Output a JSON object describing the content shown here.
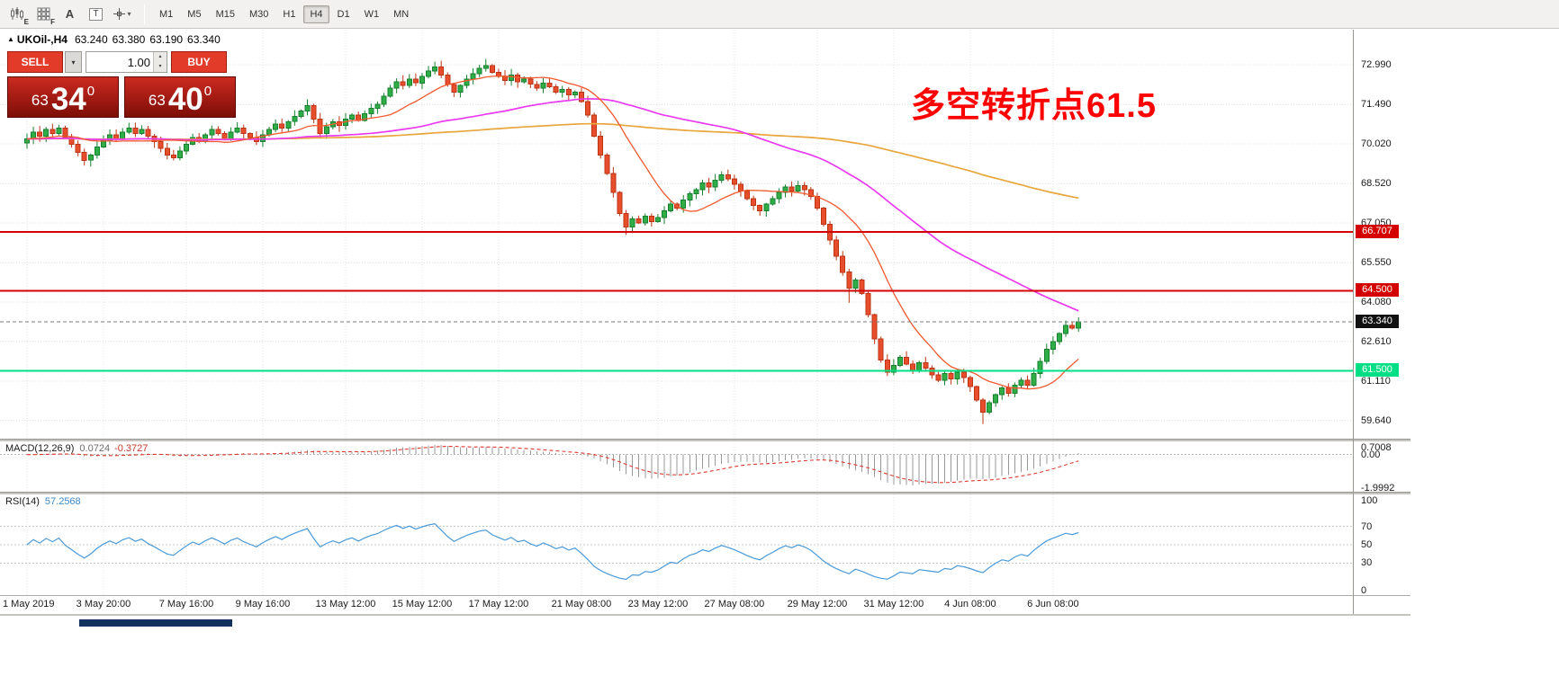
{
  "colors": {
    "toolbar_bg": "#f2f1ef",
    "chart_bg": "#ffffff",
    "grid_v": "#e5e5e5",
    "grid_h": "#e0e0e0",
    "bull_fill": "#2fae48",
    "bull_stroke": "#17802e",
    "bear_fill": "#e84e2b",
    "bear_stroke": "#bb3414",
    "ma_fast": "#f2592e",
    "ma_mid": "#ea3af0",
    "ma_slow": "#e8a63c",
    "price_line": "#7a7a7a",
    "macd_hist": "#999999",
    "macd_signal": "#dd3b30",
    "rsi_line": "#4a9ad9",
    "annotation_red": "#ff0000",
    "trade_red": "#e23b2a",
    "level_red": "#d40000",
    "level_green": "#00df85"
  },
  "toolbar": {
    "icons": [
      {
        "name": "candlestick-chart-icon",
        "glyph": "E"
      },
      {
        "name": "indicator-grid-icon",
        "glyph": "F"
      },
      {
        "name": "font-tool-icon",
        "glyph": "A"
      },
      {
        "name": "text-tool-icon",
        "glyph": "T"
      },
      {
        "name": "crosshair-tool-icon",
        "glyph": ""
      }
    ],
    "dropdown_caret": "▾",
    "timeframes": [
      "M1",
      "M5",
      "M15",
      "M30",
      "H1",
      "H4",
      "D1",
      "W1",
      "MN"
    ],
    "active_timeframe": "H4"
  },
  "symbol_header": {
    "arrow": "▲",
    "symbol": "UKOil-,H4",
    "open": "63.240",
    "high": "63.380",
    "low": "63.190",
    "close": "63.340"
  },
  "trade_panel": {
    "sell_label": "SELL",
    "buy_label": "BUY",
    "volume_value": "1.00",
    "dropdown_caret": "▾",
    "spin_up": "▴",
    "spin_down": "▾",
    "sell_quote": {
      "prefix": "63",
      "big": "34",
      "sup": "0"
    },
    "buy_quote": {
      "prefix": "63",
      "big": "40",
      "sup": "0"
    }
  },
  "annotation": {
    "text": "多空转折点61.5",
    "color": "#ff0000"
  },
  "price_axis": {
    "ticks": [
      "72.990",
      "71.490",
      "70.020",
      "68.520",
      "67.050",
      "65.550",
      "64.080",
      "62.610",
      "61.110",
      "59.640"
    ],
    "tick_values": [
      72.99,
      71.49,
      70.02,
      68.52,
      67.05,
      65.55,
      64.08,
      62.61,
      61.11,
      59.64
    ]
  },
  "levels": [
    {
      "price": 66.707,
      "label": "66.707",
      "color": "#d40000",
      "thickness": 2
    },
    {
      "price": 64.5,
      "label": "64.500",
      "color": "#d40000",
      "thickness": 2
    },
    {
      "price": 61.5,
      "label": "61.500",
      "color": "#00df85",
      "thickness": 2
    }
  ],
  "current_price": {
    "price": 63.34,
    "label": "63.340",
    "label_bg": "#111111"
  },
  "macd_panel": {
    "name": "MACD(12,26,9)",
    "main_value": "0.0724",
    "signal_value": "-0.3727",
    "ticks": [
      {
        "text": "0.7008",
        "v": 0.7008
      },
      {
        "text": "0.00",
        "v": 0
      },
      {
        "text": "-1.9992",
        "v": -1.9992
      }
    ],
    "ymax": 0.75,
    "ymin": -2.1,
    "params": {
      "fast": 12,
      "slow": 26,
      "signal": 9
    }
  },
  "rsi_panel": {
    "name": "RSI(14)",
    "value": "57.2568",
    "period": 14,
    "levels": [
      70,
      50,
      30
    ],
    "ticks": [
      {
        "text": "100",
        "v": 100
      },
      {
        "text": "70",
        "v": 70
      },
      {
        "text": "50",
        "v": 50
      },
      {
        "text": "30",
        "v": 30
      },
      {
        "text": "0",
        "v": 0
      }
    ]
  },
  "time_axis": {
    "labels": [
      {
        "text": "1 May 2019",
        "i": 0
      },
      {
        "text": "3 May 20:00",
        "i": 12
      },
      {
        "text": "7 May 16:00",
        "i": 25
      },
      {
        "text": "9 May 16:00",
        "i": 37
      },
      {
        "text": "13 May 12:00",
        "i": 50
      },
      {
        "text": "15 May 12:00",
        "i": 62
      },
      {
        "text": "17 May 12:00",
        "i": 74
      },
      {
        "text": "21 May 08:00",
        "i": 87
      },
      {
        "text": "23 May 12:00",
        "i": 99
      },
      {
        "text": "27 May 08:00",
        "i": 111
      },
      {
        "text": "29 May 12:00",
        "i": 124
      },
      {
        "text": "31 May 12:00",
        "i": 136
      },
      {
        "text": "4 Jun 08:00",
        "i": 148
      },
      {
        "text": "6 Jun 08:00",
        "i": 161
      }
    ]
  },
  "chart_data": {
    "type": "candlestick",
    "symbol": "UKOil-",
    "timeframe": "H4",
    "ymin": 58.95,
    "ymax": 74.3,
    "first_open": 70.05,
    "closes": [
      70.2,
      70.45,
      70.3,
      70.55,
      70.4,
      70.6,
      70.25,
      70.0,
      69.7,
      69.4,
      69.6,
      69.9,
      70.15,
      70.35,
      70.2,
      70.45,
      70.6,
      70.4,
      70.55,
      70.3,
      70.1,
      69.85,
      69.6,
      69.5,
      69.75,
      70.0,
      70.25,
      70.1,
      70.35,
      70.55,
      70.4,
      70.2,
      70.45,
      70.6,
      70.4,
      70.25,
      70.1,
      70.35,
      70.55,
      70.75,
      70.6,
      70.85,
      71.05,
      71.25,
      71.45,
      70.95,
      70.4,
      70.65,
      70.85,
      70.7,
      70.95,
      71.1,
      70.9,
      71.15,
      71.35,
      71.5,
      71.8,
      72.1,
      72.35,
      72.2,
      72.45,
      72.3,
      72.55,
      72.75,
      72.9,
      72.6,
      72.25,
      71.95,
      72.2,
      72.45,
      72.65,
      72.85,
      72.95,
      72.7,
      72.55,
      72.4,
      72.6,
      72.35,
      72.45,
      72.25,
      72.1,
      72.3,
      72.15,
      71.95,
      72.05,
      71.85,
      71.95,
      71.6,
      71.1,
      70.3,
      69.6,
      68.9,
      68.2,
      67.4,
      66.9,
      67.2,
      67.05,
      67.3,
      67.1,
      67.25,
      67.5,
      67.75,
      67.6,
      67.9,
      68.15,
      68.3,
      68.55,
      68.4,
      68.65,
      68.85,
      68.7,
      68.5,
      68.25,
      67.95,
      67.7,
      67.5,
      67.75,
      67.95,
      68.2,
      68.4,
      68.25,
      68.45,
      68.3,
      68.05,
      67.6,
      67.0,
      66.4,
      65.8,
      65.2,
      64.6,
      64.9,
      64.4,
      63.6,
      62.7,
      61.9,
      61.45,
      61.7,
      62.0,
      61.75,
      61.5,
      61.8,
      61.6,
      61.35,
      61.15,
      61.4,
      61.2,
      61.45,
      61.25,
      60.9,
      60.4,
      59.95,
      60.3,
      60.6,
      60.85,
      60.65,
      60.95,
      61.15,
      60.95,
      61.4,
      61.85,
      62.3,
      62.6,
      62.9,
      63.2,
      63.1,
      63.34
    ],
    "wick_overrides": {
      "64": {
        "high": 73.1
      },
      "72": {
        "high": 73.2
      },
      "94": {
        "low": 66.6
      },
      "129": {
        "low": 64.05
      },
      "135": {
        "low": 61.3
      },
      "150": {
        "low": 59.5
      }
    },
    "prehistory": {
      "count": 160,
      "price": 70.2,
      "wobble": 0.15
    },
    "ma_periods": {
      "fast": 13,
      "mid": 55,
      "slow": 144
    }
  }
}
